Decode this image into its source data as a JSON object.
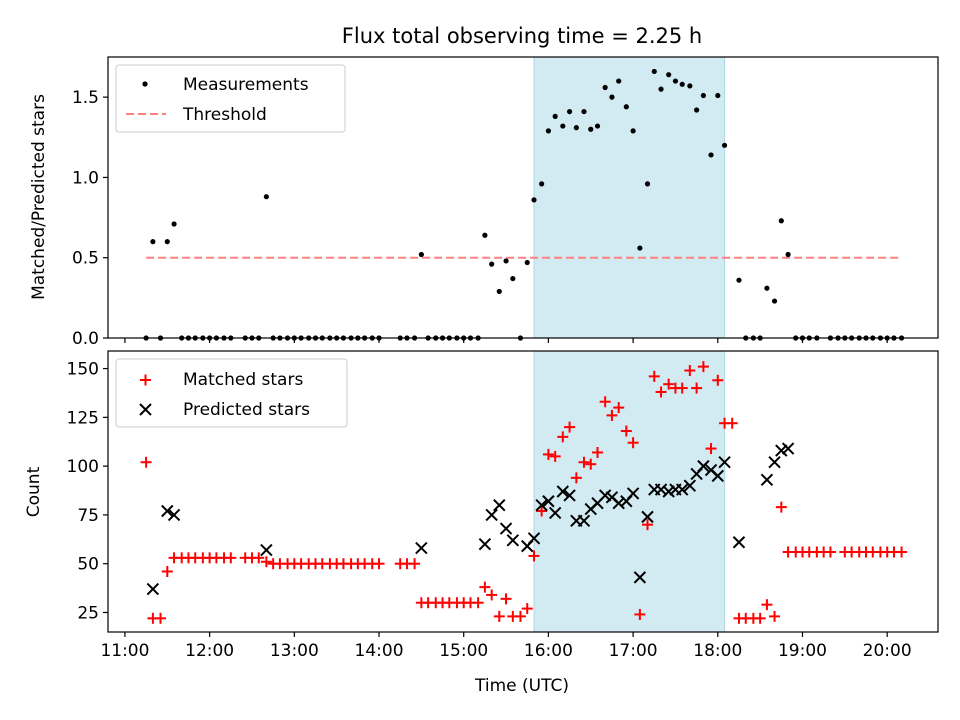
{
  "title": "Flux total observing time = 2.25 h",
  "time_ticks": [
    "11:00",
    "12:00",
    "13:00",
    "14:00",
    "15:00",
    "16:00",
    "17:00",
    "18:00",
    "19:00",
    "20:00"
  ],
  "time_tick_hours": [
    11,
    12,
    13,
    14,
    15,
    16,
    17,
    18,
    19,
    20
  ],
  "xlim_hours": [
    10.8,
    20.6
  ],
  "xlabel": "Time (UTC)",
  "observing_window_hours": [
    15.83,
    18.08
  ],
  "span_color": "#add8e6",
  "colors": {
    "measurement": "#000000",
    "threshold": "#ff7f7f",
    "matched": "#ff0000",
    "predicted": "#000000"
  },
  "chart_data": [
    {
      "type": "scatter",
      "panel": "top",
      "ylabel": "Matched/Predicted stars",
      "ylim": [
        0,
        1.75
      ],
      "yticks": [
        0.0,
        0.5,
        1.0,
        1.5
      ],
      "ytick_labels": [
        "0.0",
        "0.5",
        "1.0",
        "1.5"
      ],
      "legend": [
        "Measurements",
        "Threshold"
      ],
      "threshold": {
        "value": 0.5,
        "x_range": [
          11.25,
          20.17
        ]
      },
      "series": [
        {
          "name": "Measurements",
          "points": [
            [
              11.25,
              0
            ],
            [
              11.33,
              0.6
            ],
            [
              11.42,
              0
            ],
            [
              11.5,
              0.6
            ],
            [
              11.58,
              0.71
            ],
            [
              11.67,
              0
            ],
            [
              11.75,
              0
            ],
            [
              11.83,
              0
            ],
            [
              11.92,
              0
            ],
            [
              12.0,
              0
            ],
            [
              12.08,
              0
            ],
            [
              12.17,
              0
            ],
            [
              12.25,
              0
            ],
            [
              12.42,
              0
            ],
            [
              12.5,
              0
            ],
            [
              12.58,
              0
            ],
            [
              12.67,
              0.88
            ],
            [
              12.75,
              0
            ],
            [
              12.83,
              0
            ],
            [
              12.92,
              0
            ],
            [
              13.0,
              0
            ],
            [
              13.08,
              0
            ],
            [
              13.17,
              0
            ],
            [
              13.25,
              0
            ],
            [
              13.33,
              0
            ],
            [
              13.42,
              0
            ],
            [
              13.5,
              0
            ],
            [
              13.58,
              0
            ],
            [
              13.67,
              0
            ],
            [
              13.75,
              0
            ],
            [
              13.83,
              0
            ],
            [
              13.92,
              0
            ],
            [
              14.0,
              0
            ],
            [
              14.25,
              0
            ],
            [
              14.33,
              0
            ],
            [
              14.42,
              0
            ],
            [
              14.5,
              0.52
            ],
            [
              14.58,
              0
            ],
            [
              14.67,
              0
            ],
            [
              14.75,
              0
            ],
            [
              14.83,
              0
            ],
            [
              14.92,
              0
            ],
            [
              15.0,
              0
            ],
            [
              15.08,
              0
            ],
            [
              15.17,
              0
            ],
            [
              15.25,
              0.64
            ],
            [
              15.33,
              0.46
            ],
            [
              15.42,
              0.29
            ],
            [
              15.5,
              0.48
            ],
            [
              15.58,
              0.37
            ],
            [
              15.67,
              0
            ],
            [
              15.75,
              0.47
            ],
            [
              15.83,
              0.86
            ],
            [
              15.92,
              0.96
            ],
            [
              16.0,
              1.29
            ],
            [
              16.08,
              1.38
            ],
            [
              16.17,
              1.32
            ],
            [
              16.25,
              1.41
            ],
            [
              16.33,
              1.31
            ],
            [
              16.42,
              1.41
            ],
            [
              16.5,
              1.3
            ],
            [
              16.58,
              1.32
            ],
            [
              16.67,
              1.56
            ],
            [
              16.75,
              1.5
            ],
            [
              16.83,
              1.6
            ],
            [
              16.92,
              1.44
            ],
            [
              17.0,
              1.29
            ],
            [
              17.08,
              0.56
            ],
            [
              17.17,
              0.96
            ],
            [
              17.25,
              1.66
            ],
            [
              17.33,
              1.55
            ],
            [
              17.42,
              1.64
            ],
            [
              17.5,
              1.6
            ],
            [
              17.58,
              1.58
            ],
            [
              17.67,
              1.57
            ],
            [
              17.75,
              1.42
            ],
            [
              17.83,
              1.51
            ],
            [
              17.92,
              1.14
            ],
            [
              18.0,
              1.51
            ],
            [
              18.08,
              1.2
            ],
            [
              18.25,
              0.36
            ],
            [
              18.33,
              0
            ],
            [
              18.42,
              0
            ],
            [
              18.5,
              0
            ],
            [
              18.58,
              0.31
            ],
            [
              18.67,
              0.23
            ],
            [
              18.75,
              0.73
            ],
            [
              18.83,
              0.52
            ],
            [
              18.92,
              0
            ],
            [
              19.0,
              0
            ],
            [
              19.08,
              0
            ],
            [
              19.17,
              0
            ],
            [
              19.33,
              0
            ],
            [
              19.42,
              0
            ],
            [
              19.5,
              0
            ],
            [
              19.58,
              0
            ],
            [
              19.67,
              0
            ],
            [
              19.75,
              0
            ],
            [
              19.83,
              0
            ],
            [
              19.92,
              0
            ],
            [
              20.0,
              0
            ],
            [
              20.08,
              0
            ],
            [
              20.17,
              0
            ]
          ]
        }
      ]
    },
    {
      "type": "scatter",
      "panel": "bottom",
      "ylabel": "Count",
      "ylim": [
        15,
        159
      ],
      "yticks": [
        25,
        50,
        75,
        100,
        125,
        150
      ],
      "ytick_labels": [
        "25",
        "50",
        "75",
        "100",
        "125",
        "150"
      ],
      "legend": [
        "Matched stars",
        "Predicted stars"
      ],
      "series": [
        {
          "name": "Matched stars",
          "marker": "plus",
          "points": [
            [
              11.25,
              102
            ],
            [
              11.33,
              22
            ],
            [
              11.42,
              22
            ],
            [
              11.5,
              46
            ],
            [
              11.58,
              53
            ],
            [
              11.67,
              53
            ],
            [
              11.75,
              53
            ],
            [
              11.83,
              53
            ],
            [
              11.92,
              53
            ],
            [
              12.0,
              53
            ],
            [
              12.08,
              53
            ],
            [
              12.17,
              53
            ],
            [
              12.25,
              53
            ],
            [
              12.42,
              53
            ],
            [
              12.5,
              53
            ],
            [
              12.58,
              53
            ],
            [
              12.67,
              51
            ],
            [
              12.75,
              50
            ],
            [
              12.83,
              50
            ],
            [
              12.92,
              50
            ],
            [
              13.0,
              50
            ],
            [
              13.08,
              50
            ],
            [
              13.17,
              50
            ],
            [
              13.25,
              50
            ],
            [
              13.33,
              50
            ],
            [
              13.42,
              50
            ],
            [
              13.5,
              50
            ],
            [
              13.58,
              50
            ],
            [
              13.67,
              50
            ],
            [
              13.75,
              50
            ],
            [
              13.83,
              50
            ],
            [
              13.92,
              50
            ],
            [
              14.0,
              50
            ],
            [
              14.25,
              50
            ],
            [
              14.33,
              50
            ],
            [
              14.42,
              50
            ],
            [
              14.5,
              30
            ],
            [
              14.58,
              30
            ],
            [
              14.67,
              30
            ],
            [
              14.75,
              30
            ],
            [
              14.83,
              30
            ],
            [
              14.92,
              30
            ],
            [
              15.0,
              30
            ],
            [
              15.08,
              30
            ],
            [
              15.17,
              30
            ],
            [
              15.25,
              38
            ],
            [
              15.33,
              34
            ],
            [
              15.42,
              23
            ],
            [
              15.5,
              32
            ],
            [
              15.58,
              23
            ],
            [
              15.67,
              23
            ],
            [
              15.75,
              27
            ],
            [
              15.83,
              54
            ],
            [
              15.92,
              77
            ],
            [
              16.0,
              106
            ],
            [
              16.08,
              105
            ],
            [
              16.17,
              115
            ],
            [
              16.25,
              120
            ],
            [
              16.33,
              94
            ],
            [
              16.42,
              102
            ],
            [
              16.5,
              101
            ],
            [
              16.58,
              107
            ],
            [
              16.67,
              133
            ],
            [
              16.75,
              126
            ],
            [
              16.83,
              130
            ],
            [
              16.92,
              118
            ],
            [
              17.0,
              112
            ],
            [
              17.08,
              24
            ],
            [
              17.17,
              70
            ],
            [
              17.25,
              146
            ],
            [
              17.33,
              138
            ],
            [
              17.42,
              142
            ],
            [
              17.5,
              140
            ],
            [
              17.58,
              140
            ],
            [
              17.67,
              149
            ],
            [
              17.75,
              140
            ],
            [
              17.83,
              151
            ],
            [
              17.92,
              109
            ],
            [
              18.0,
              144
            ],
            [
              18.08,
              122
            ],
            [
              18.17,
              122
            ],
            [
              18.25,
              22
            ],
            [
              18.33,
              22
            ],
            [
              18.42,
              22
            ],
            [
              18.5,
              22
            ],
            [
              18.58,
              29
            ],
            [
              18.67,
              23
            ],
            [
              18.75,
              79
            ],
            [
              18.83,
              56
            ],
            [
              18.92,
              56
            ],
            [
              19.0,
              56
            ],
            [
              19.08,
              56
            ],
            [
              19.17,
              56
            ],
            [
              19.25,
              56
            ],
            [
              19.33,
              56
            ],
            [
              19.5,
              56
            ],
            [
              19.58,
              56
            ],
            [
              19.67,
              56
            ],
            [
              19.75,
              56
            ],
            [
              19.83,
              56
            ],
            [
              19.92,
              56
            ],
            [
              20.0,
              56
            ],
            [
              20.08,
              56
            ],
            [
              20.17,
              56
            ]
          ]
        },
        {
          "name": "Predicted stars",
          "marker": "x",
          "points": [
            [
              11.33,
              37
            ],
            [
              11.5,
              77
            ],
            [
              11.58,
              75
            ],
            [
              12.67,
              57
            ],
            [
              14.5,
              58
            ],
            [
              15.25,
              60
            ],
            [
              15.33,
              75
            ],
            [
              15.42,
              80
            ],
            [
              15.5,
              68
            ],
            [
              15.58,
              62
            ],
            [
              15.75,
              59
            ],
            [
              15.83,
              63
            ],
            [
              15.92,
              80
            ],
            [
              16.0,
              82
            ],
            [
              16.08,
              76
            ],
            [
              16.17,
              87
            ],
            [
              16.25,
              85
            ],
            [
              16.33,
              72
            ],
            [
              16.42,
              72
            ],
            [
              16.5,
              78
            ],
            [
              16.58,
              81
            ],
            [
              16.67,
              85
            ],
            [
              16.75,
              84
            ],
            [
              16.83,
              81
            ],
            [
              16.92,
              82
            ],
            [
              17.0,
              86
            ],
            [
              17.08,
              43
            ],
            [
              17.17,
              74
            ],
            [
              17.25,
              88
            ],
            [
              17.33,
              88
            ],
            [
              17.42,
              87
            ],
            [
              17.5,
              88
            ],
            [
              17.58,
              88
            ],
            [
              17.67,
              90
            ],
            [
              17.75,
              96
            ],
            [
              17.83,
              100
            ],
            [
              17.92,
              98
            ],
            [
              18.0,
              95
            ],
            [
              18.08,
              102
            ],
            [
              18.25,
              61
            ],
            [
              18.58,
              93
            ],
            [
              18.67,
              102
            ],
            [
              18.75,
              108
            ],
            [
              18.83,
              109
            ]
          ]
        }
      ]
    }
  ]
}
